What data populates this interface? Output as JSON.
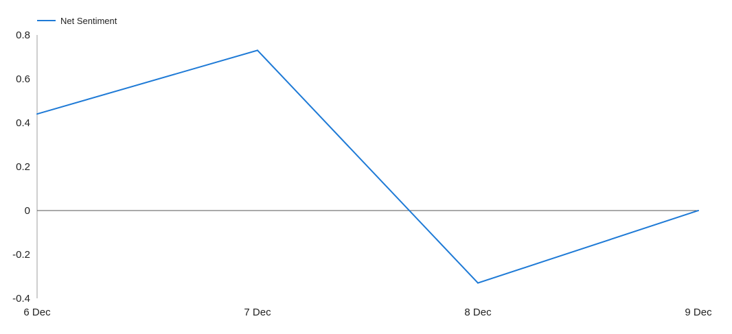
{
  "chart_data": {
    "type": "line",
    "title": "",
    "xlabel": "",
    "ylabel": "",
    "categories": [
      "6 Dec",
      "7 Dec",
      "8 Dec",
      "9 Dec"
    ],
    "series": [
      {
        "name": "Net Sentiment",
        "values": [
          0.44,
          0.73,
          -0.33,
          0.0
        ],
        "color": "#1e7ad6"
      }
    ],
    "ylim": [
      -0.4,
      0.8
    ],
    "yticks": [
      0.8,
      0.6,
      0.4,
      0.2,
      0,
      -0.2,
      -0.4
    ],
    "ytick_labels": [
      "0.8",
      "0.6",
      "0.4",
      "0.2",
      "0",
      "-0.2",
      "-0.4"
    ],
    "grid": false,
    "zero_line": true,
    "legend": {
      "position": "top-left"
    }
  }
}
